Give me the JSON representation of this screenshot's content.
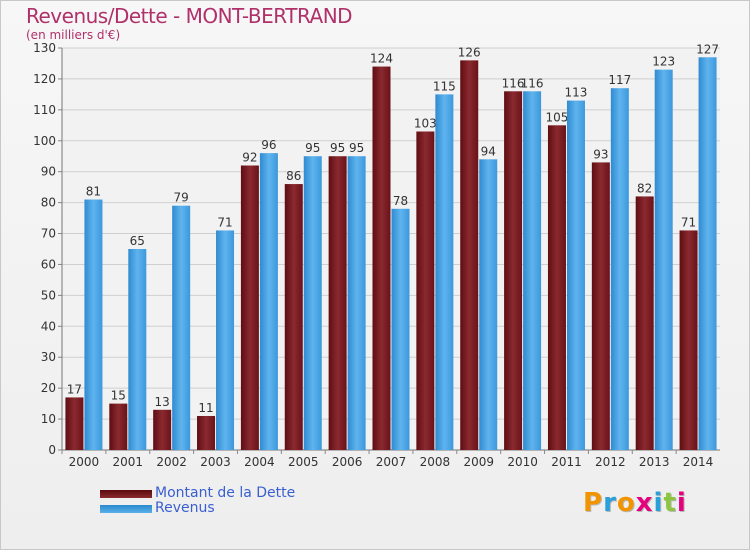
{
  "title": "Revenus/Dette - MONT-BERTRAND",
  "subtitle": "(en milliers d'€)",
  "logo": {
    "text": "Proxiti",
    "colors": [
      "#f29400",
      "#2a9fd8",
      "#f29400",
      "#e6007e",
      "#2a9fd8",
      "#8cc63f",
      "#e6007e"
    ]
  },
  "legend": [
    {
      "label": "Montant de la Dette",
      "color": "#6b0f14"
    },
    {
      "label": "Revenus",
      "color": "#3a98dc"
    }
  ],
  "colors": {
    "dette": "#7a1a1e",
    "revenus": "#4aa3e2",
    "title": "#b0306a"
  },
  "chart_data": {
    "type": "bar",
    "categories": [
      "2000",
      "2001",
      "2002",
      "2003",
      "2004",
      "2005",
      "2006",
      "2007",
      "2008",
      "2009",
      "2010",
      "2011",
      "2012",
      "2013",
      "2014"
    ],
    "series": [
      {
        "name": "Montant de la Dette",
        "values": [
          17,
          15,
          13,
          11,
          92,
          86,
          95,
          124,
          103,
          126,
          116,
          105,
          93,
          82,
          71
        ]
      },
      {
        "name": "Revenus",
        "values": [
          81,
          65,
          79,
          71,
          96,
          95,
          95,
          78,
          115,
          94,
          116,
          113,
          117,
          123,
          127
        ]
      }
    ],
    "ylim": [
      0,
      130
    ],
    "yticks": [
      0,
      10,
      20,
      30,
      40,
      50,
      60,
      70,
      80,
      90,
      100,
      110,
      120,
      130
    ],
    "grid": true
  }
}
